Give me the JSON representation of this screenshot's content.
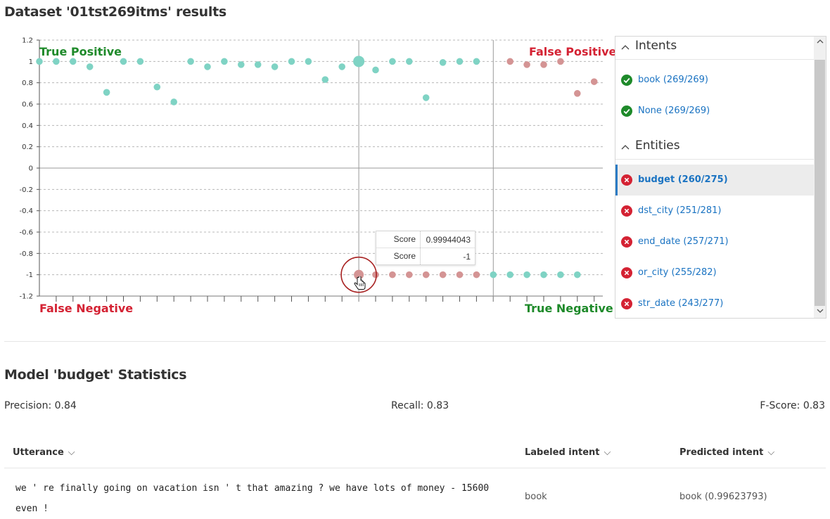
{
  "page_title": "Dataset '01tst269itms' results",
  "chart_data": {
    "type": "scatter",
    "ylim": [
      -1.2,
      1.2
    ],
    "yticks": [
      "1.2",
      "1",
      "0.8",
      "0.6",
      "0.4",
      "0.2",
      "0",
      "-0.2",
      "-0.4",
      "-0.6",
      "-0.8",
      "-1",
      "-1.2"
    ],
    "grid": true,
    "quadrant_labels": {
      "true_positive": "True Positive",
      "false_positive": "False Positive",
      "false_negative": "False Negative",
      "true_negative": "True Negative"
    },
    "series": [
      {
        "color": "#7fd3c4",
        "values": [
          1,
          1,
          1,
          0.95,
          0.71,
          1,
          1,
          0.76,
          0.62,
          1,
          0.95,
          1,
          0.97,
          0.97,
          0.95,
          1,
          1,
          0.83,
          0.95,
          1,
          0.92,
          1,
          1,
          0.66,
          0.99,
          1,
          1
        ]
      },
      {
        "color": "#d49494",
        "values": [
          1,
          0.97,
          0.97,
          1,
          0.7,
          0.81
        ]
      },
      {
        "color": "#d49494",
        "values": [
          -1,
          -1,
          -1,
          -1,
          -1,
          -1,
          -1,
          -1
        ]
      },
      {
        "color": "#7fd3c4",
        "values": [
          -1,
          -1,
          -1,
          -1,
          -1,
          -1
        ]
      }
    ]
  },
  "tooltip": {
    "rows": [
      {
        "key": "Score",
        "value": "0.99944043"
      },
      {
        "key": "Score",
        "value": "-1"
      }
    ]
  },
  "panel": {
    "intents_header": "Intents",
    "intents": [
      {
        "label": "book (269/269)",
        "status": "ok"
      },
      {
        "label": "None (269/269)",
        "status": "ok"
      }
    ],
    "entities_header": "Entities",
    "entities": [
      {
        "label": "budget (260/275)",
        "status": "error",
        "selected": true
      },
      {
        "label": "dst_city (251/281)",
        "status": "error"
      },
      {
        "label": "end_date (257/271)",
        "status": "error"
      },
      {
        "label": "or_city (255/282)",
        "status": "error"
      },
      {
        "label": "str_date (243/277)",
        "status": "error"
      }
    ]
  },
  "stats": {
    "title": "Model 'budget' Statistics",
    "precision": "Precision: 0.84",
    "recall": "Recall: 0.83",
    "fscore": "F-Score: 0.83"
  },
  "table": {
    "headers": [
      "Utterance",
      "Labeled intent",
      "Predicted intent"
    ],
    "rows": [
      {
        "utterance": "we ' re finally going on vacation isn ' t that amazing ? we have lots of money - 15600 even !",
        "labeled": "book",
        "predicted": "book (0.99623793)"
      }
    ]
  },
  "colors": {
    "teal": "#7fd3c4",
    "rose": "#d49494",
    "green": "#1e8a2a",
    "red": "#d42233",
    "link": "#1a73c2"
  }
}
